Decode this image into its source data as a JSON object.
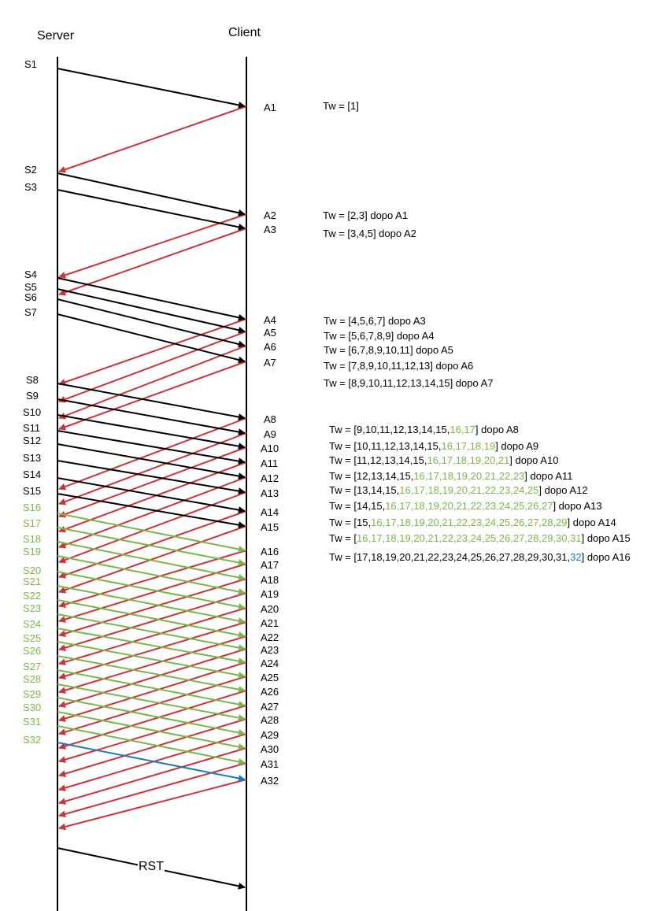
{
  "headers": {
    "server": "Server",
    "client": "Client"
  },
  "rst_label": "RST",
  "colors": {
    "black": "#000000",
    "red": "#cf3237",
    "green": "#7ab648",
    "blue": "#1f7ab5"
  },
  "s_labels": [
    {
      "text": "S1",
      "color": "black"
    },
    {
      "text": "S2",
      "color": "black"
    },
    {
      "text": "S3",
      "color": "black"
    },
    {
      "text": "S4",
      "color": "black"
    },
    {
      "text": "S5",
      "color": "black"
    },
    {
      "text": "S6",
      "color": "black"
    },
    {
      "text": "S7",
      "color": "black"
    },
    {
      "text": "S8",
      "color": "black"
    },
    {
      "text": "S9",
      "color": "black"
    },
    {
      "text": "S10",
      "color": "black"
    },
    {
      "text": "S11",
      "color": "black"
    },
    {
      "text": "S12",
      "color": "black"
    },
    {
      "text": "S13",
      "color": "black"
    },
    {
      "text": "S14",
      "color": "black"
    },
    {
      "text": "S15",
      "color": "black"
    },
    {
      "text": "S16",
      "color": "green"
    },
    {
      "text": "S17",
      "color": "green"
    },
    {
      "text": "S18",
      "color": "green"
    },
    {
      "text": "S19",
      "color": "green"
    },
    {
      "text": "S20",
      "color": "green"
    },
    {
      "text": "S21",
      "color": "green"
    },
    {
      "text": "S22",
      "color": "green"
    },
    {
      "text": "S23",
      "color": "green"
    },
    {
      "text": "S24",
      "color": "green"
    },
    {
      "text": "S25",
      "color": "green"
    },
    {
      "text": "S26",
      "color": "green"
    },
    {
      "text": "S27",
      "color": "green"
    },
    {
      "text": "S28",
      "color": "green"
    },
    {
      "text": "S29",
      "color": "green"
    },
    {
      "text": "S30",
      "color": "green"
    },
    {
      "text": "S31",
      "color": "green"
    },
    {
      "text": "S32",
      "color": "green"
    }
  ],
  "a_labels": [
    "A1",
    "A2",
    "A3",
    "A4",
    "A5",
    "A6",
    "A7",
    "A8",
    "A9",
    "A10",
    "A11",
    "A12",
    "A13",
    "A14",
    "A15",
    "A16",
    "A17",
    "A18",
    "A19",
    "A20",
    "A21",
    "A22",
    "A23",
    "A24",
    "A25",
    "A26",
    "A27",
    "A28",
    "A29",
    "A30",
    "A31",
    "A32"
  ],
  "tw_lines": [
    [
      {
        "t": "Tw = [1]"
      }
    ],
    [
      {
        "t": "Tw = [2,3] dopo A1"
      }
    ],
    [
      {
        "t": "Tw = [3,4,5] dopo A2"
      }
    ],
    [
      {
        "t": "Tw = [4,5,6,7] dopo A3"
      }
    ],
    [
      {
        "t": "Tw = [5,6,7,8,9] dopo A4"
      }
    ],
    [
      {
        "t": "Tw = [6,7,8,9,10,11] dopo A5"
      }
    ],
    [
      {
        "t": "Tw = [7,8,9,10,11,12,13] dopo A6"
      }
    ],
    [
      {
        "t": "Tw = [8,9,10,11,12,13,14,15] dopo A7"
      }
    ],
    [
      {
        "t": "Tw = [9,10,11,12,13,14,15,"
      },
      {
        "t": "16,17",
        "c": "green"
      },
      {
        "t": "] dopo A8"
      }
    ],
    [
      {
        "t": "Tw = [10,11,12,13,14,15,"
      },
      {
        "t": "16,17,18,19",
        "c": "green"
      },
      {
        "t": "] dopo A9"
      }
    ],
    [
      {
        "t": "Tw = [11,12,13,14,15,"
      },
      {
        "t": "16,17,18,19,20,21",
        "c": "green"
      },
      {
        "t": "] dopo A10"
      }
    ],
    [
      {
        "t": "Tw = [12,13,14,15,"
      },
      {
        "t": "16,17,18,19,20,21,22,23",
        "c": "green"
      },
      {
        "t": "] dopo A11"
      }
    ],
    [
      {
        "t": "Tw = [13,14,15,"
      },
      {
        "t": "16,17,18,19,20,21,22,23,24,25",
        "c": "green"
      },
      {
        "t": "] dopo A12"
      }
    ],
    [
      {
        "t": "Tw = [14,15,"
      },
      {
        "t": "16,17,18,19,20,21,22,23,24,25,26,27",
        "c": "green"
      },
      {
        "t": "] dopo A13"
      }
    ],
    [
      {
        "t": "Tw = [15,"
      },
      {
        "t": "16,17,18,19,20,21,22,23,24,25,26,27,28,29",
        "c": "green"
      },
      {
        "t": "] dopo A14"
      }
    ],
    [
      {
        "t": "Tw = ["
      },
      {
        "t": "16,17,18,19,20,21,22,23,24,25,26,27,28,29,30,31",
        "c": "green"
      },
      {
        "t": "] dopo A15"
      }
    ],
    [
      {
        "t": "Tw = [17,18,19,20,21,22,23,24,25,26,27,28,29,30,31,"
      },
      {
        "t": "32",
        "c": "blue"
      },
      {
        "t": "] dopo A16"
      }
    ]
  ]
}
